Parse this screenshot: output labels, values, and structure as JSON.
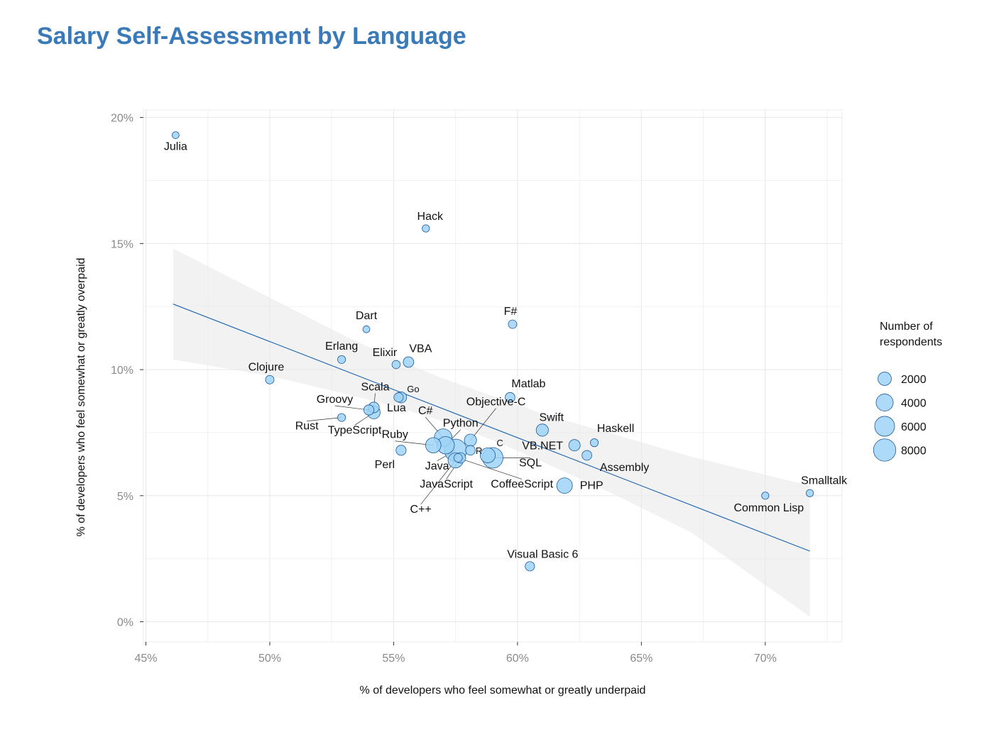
{
  "chart_data": {
    "type": "scatter",
    "title": "Salary Self-Assessment by Language",
    "xlabel": "% of developers who feel somewhat or greatly underpaid",
    "ylabel": "% of developers who feel somewhat or greatly overpaid",
    "xlim": [
      44.9,
      73.1
    ],
    "ylim": [
      -0.8,
      20.3
    ],
    "x_ticks": [
      45,
      50,
      55,
      60,
      65,
      70
    ],
    "x_tick_labels": [
      "45%",
      "50%",
      "55%",
      "60%",
      "65%",
      "70%"
    ],
    "y_ticks": [
      0,
      5,
      10,
      15,
      20
    ],
    "y_tick_labels": [
      "0%",
      "5%",
      "10%",
      "15%",
      "20%"
    ],
    "grid": true,
    "point_color": "#9fd3f7",
    "point_stroke": "#1f5a99",
    "trend_line": {
      "x": [
        46.1,
        71.8
      ],
      "y": [
        12.6,
        2.8
      ],
      "color": "#1a63b0"
    },
    "confidence_band": {
      "x": [
        46.1,
        50,
        53,
        55,
        57,
        59,
        61,
        64,
        67,
        71.8
      ],
      "upper": [
        14.8,
        12.85,
        11.35,
        10.45,
        9.65,
        8.95,
        8.25,
        7.4,
        6.55,
        5.4
      ],
      "lower": [
        10.4,
        9.75,
        9.05,
        8.55,
        7.95,
        7.2,
        6.35,
        5.0,
        3.55,
        0.2
      ],
      "color": "#e9e9e9"
    },
    "legend": {
      "title_line1": "Number of",
      "title_line2": "respondents",
      "sizes": [
        2000,
        4000,
        6000,
        8000
      ],
      "labels": [
        "2000",
        "4000",
        "6000",
        "8000"
      ],
      "placement": "right"
    },
    "points": [
      {
        "label": "Julia",
        "x": 46.2,
        "y": 19.3,
        "n": 150
      },
      {
        "label": "Hack",
        "x": 56.3,
        "y": 15.6,
        "n": 200
      },
      {
        "label": "Dart",
        "x": 53.9,
        "y": 11.6,
        "n": 150
      },
      {
        "label": "F#",
        "x": 59.8,
        "y": 11.8,
        "n": 400
      },
      {
        "label": "Erlang",
        "x": 52.9,
        "y": 10.4,
        "n": 300
      },
      {
        "label": "Elixir",
        "x": 55.1,
        "y": 10.2,
        "n": 350
      },
      {
        "label": "VBA",
        "x": 55.6,
        "y": 10.3,
        "n": 900
      },
      {
        "label": "Clojure",
        "x": 50.0,
        "y": 9.6,
        "n": 400
      },
      {
        "label": "Matlab",
        "x": 59.7,
        "y": 8.9,
        "n": 700
      },
      {
        "label": "Go",
        "x": 55.3,
        "y": 8.9,
        "n": 1100
      },
      {
        "label": "Scala",
        "x": 54.2,
        "y": 8.5,
        "n": 1000
      },
      {
        "label": "Lua",
        "x": 55.2,
        "y": 8.9,
        "n": 600
      },
      {
        "label": "Groovy",
        "x": 54.0,
        "y": 8.4,
        "n": 800
      },
      {
        "label": "Rust",
        "x": 52.9,
        "y": 8.1,
        "n": 300
      },
      {
        "label": "TypeScript",
        "x": 54.2,
        "y": 8.3,
        "n": 1700
      },
      {
        "label": "Objective-C",
        "x": 58.1,
        "y": 7.2,
        "n": 1500
      },
      {
        "label": "Swift",
        "x": 61.0,
        "y": 7.6,
        "n": 1500
      },
      {
        "label": "Haskell",
        "x": 63.1,
        "y": 7.1,
        "n": 300
      },
      {
        "label": "C#",
        "x": 57.0,
        "y": 7.3,
        "n": 4400
      },
      {
        "label": "Python",
        "x": 57.1,
        "y": 7.0,
        "n": 4200
      },
      {
        "label": "Ruby",
        "x": 56.6,
        "y": 7.0,
        "n": 3000
      },
      {
        "label": "VB.NET",
        "x": 62.3,
        "y": 7.0,
        "n": 1200
      },
      {
        "label": "C",
        "x": 58.8,
        "y": 6.6,
        "n": 2800
      },
      {
        "label": "R",
        "x": 58.1,
        "y": 6.8,
        "n": 700
      },
      {
        "label": "Assembly",
        "x": 62.8,
        "y": 6.6,
        "n": 700
      },
      {
        "label": "Perl",
        "x": 55.3,
        "y": 6.8,
        "n": 800
      },
      {
        "label": "Java",
        "x": 57.5,
        "y": 6.8,
        "n": 8000
      },
      {
        "label": "SQL",
        "x": 59.0,
        "y": 6.5,
        "n": 6500
      },
      {
        "label": "JavaScript",
        "x": 57.7,
        "y": 6.5,
        "n": 900
      },
      {
        "label": "C++",
        "x": 57.5,
        "y": 6.4,
        "n": 2800
      },
      {
        "label": "CoffeeScript",
        "x": 57.6,
        "y": 6.5,
        "n": 400
      },
      {
        "label": "PHP",
        "x": 61.9,
        "y": 5.4,
        "n": 3100
      },
      {
        "label": "Smalltalk",
        "x": 71.8,
        "y": 5.1,
        "n": 200
      },
      {
        "label": "Common Lisp",
        "x": 70.0,
        "y": 5.0,
        "n": 200
      },
      {
        "label": "Visual Basic 6",
        "x": 60.5,
        "y": 2.2,
        "n": 600
      }
    ]
  }
}
